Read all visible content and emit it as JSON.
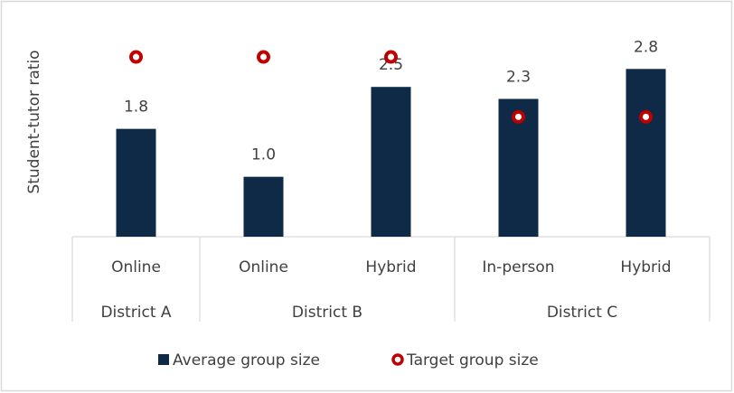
{
  "chart_data": {
    "type": "bar",
    "y_label": "Student-tutor ratio",
    "categories": [
      "Online",
      "Online",
      "Hybrid",
      "In-person",
      "Hybrid"
    ],
    "groups": [
      {
        "label": "District A",
        "count": 1
      },
      {
        "label": "District B",
        "count": 2
      },
      {
        "label": "District C",
        "count": 2
      }
    ],
    "series": [
      {
        "name": "Average group size",
        "color": "#0e2a47",
        "kind": "bar",
        "values": [
          1.8,
          1.0,
          2.5,
          2.3,
          2.8
        ],
        "value_labels": [
          "1.8",
          "1.0",
          "2.5",
          "2.3",
          "2.8"
        ]
      },
      {
        "name": "Target group size",
        "color": "#c00000",
        "kind": "marker",
        "values": [
          3,
          3,
          3,
          2,
          2
        ]
      }
    ],
    "ylim": [
      0,
      3.8
    ]
  }
}
